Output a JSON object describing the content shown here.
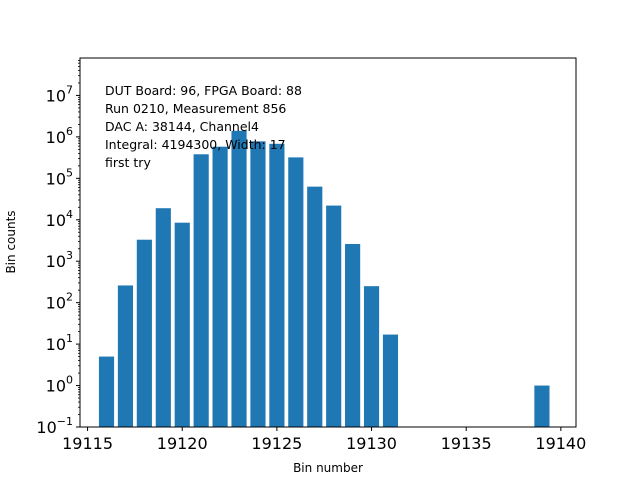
{
  "chart_data": {
    "type": "bar",
    "xlabel": "Bin number",
    "ylabel": "Bin counts",
    "y_scale": "log",
    "ylim": [
      0.1,
      80000000
    ],
    "xlim": [
      19114.6,
      19140.8
    ],
    "bar_width": 0.8,
    "bar_color": "#1f77b4",
    "x_ticks": [
      19115,
      19120,
      19125,
      19130,
      19135,
      19140
    ],
    "x_tick_labels": [
      "19115",
      "19120",
      "19125",
      "19130",
      "19135",
      "19140"
    ],
    "y_ticks": [
      {
        "base": "10",
        "exp": "−1",
        "value": 0.1
      },
      {
        "base": "10",
        "exp": "0",
        "value": 1
      },
      {
        "base": "10",
        "exp": "1",
        "value": 10
      },
      {
        "base": "10",
        "exp": "2",
        "value": 100
      },
      {
        "base": "10",
        "exp": "3",
        "value": 1000
      },
      {
        "base": "10",
        "exp": "4",
        "value": 10000
      },
      {
        "base": "10",
        "exp": "5",
        "value": 100000
      },
      {
        "base": "10",
        "exp": "6",
        "value": 1000000
      },
      {
        "base": "10",
        "exp": "7",
        "value": 10000000
      }
    ],
    "x": [
      19116,
      19117,
      19118,
      19119,
      19120,
      19121,
      19122,
      19123,
      19124,
      19125,
      19126,
      19127,
      19128,
      19129,
      19130,
      19131,
      19139
    ],
    "values": [
      5,
      260,
      3300,
      19000,
      8500,
      380000,
      580000,
      1400000,
      780000,
      680000,
      320000,
      63000,
      22000,
      2600,
      250,
      17,
      1
    ],
    "annotation_lines": [
      "DUT Board: 96, FPGA Board: 88",
      "Run 0210, Measurement 856",
      "DAC A: 38144, Channel4",
      "Integral: 4194300, Width: 17",
      "first try"
    ]
  }
}
